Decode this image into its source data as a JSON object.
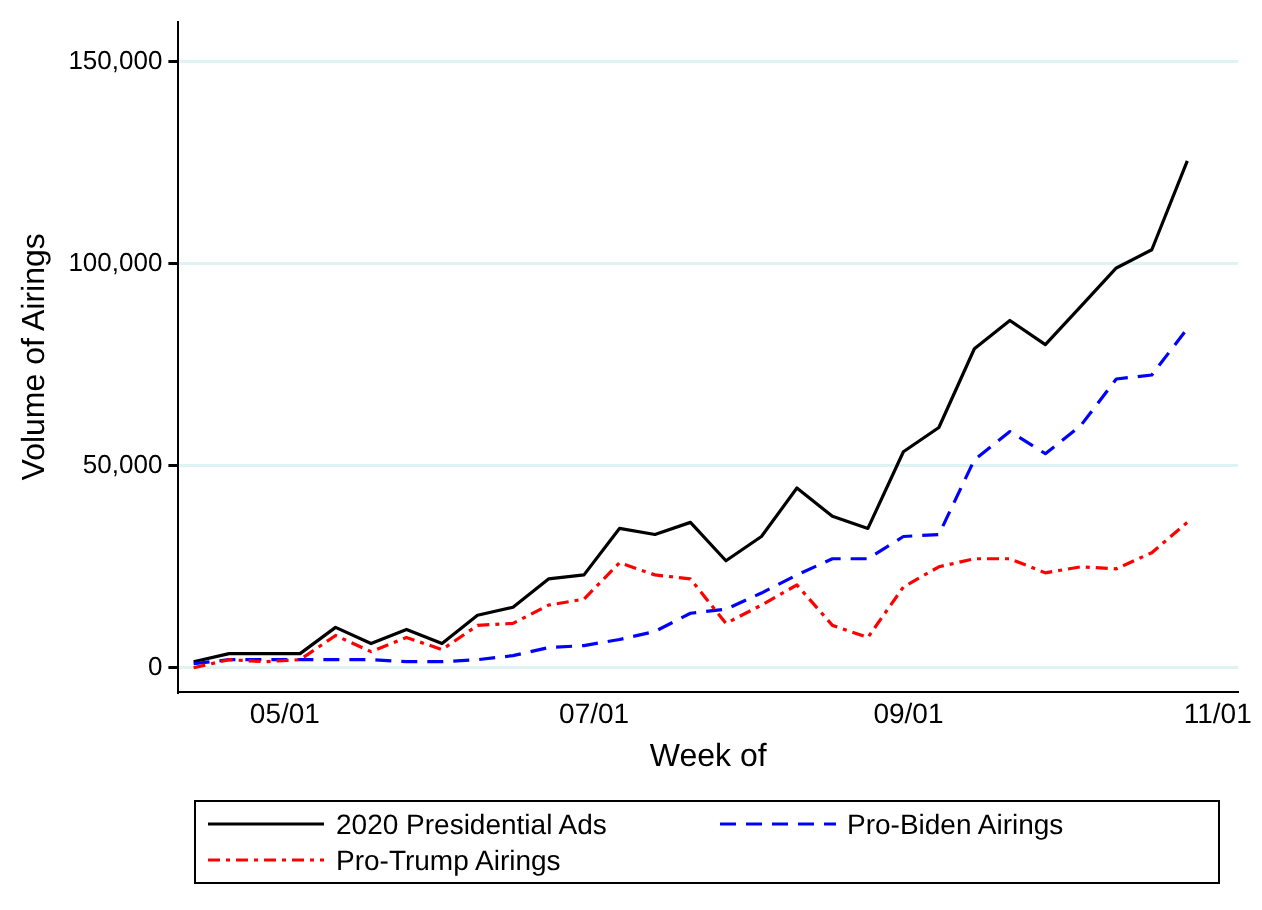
{
  "chart_data": {
    "type": "line",
    "xlabel": "Week of",
    "ylabel": "Volume of Airings",
    "x": [
      "--04-13",
      "--04-20",
      "--04-27",
      "--05-04",
      "--05-11",
      "--05-18",
      "--05-25",
      "--06-01",
      "--06-08",
      "--06-15",
      "--06-22",
      "--06-29",
      "--07-06",
      "--07-13",
      "--07-20",
      "--07-27",
      "--08-03",
      "--08-10",
      "--08-17",
      "--08-24",
      "--08-31",
      "--09-07",
      "--09-14",
      "--09-21",
      "--09-28",
      "--10-05",
      "--10-12",
      "--10-19",
      "--10-26"
    ],
    "series": [
      {
        "name": "2020 Presidential Ads",
        "color": "#000000",
        "line_style": "solid",
        "values": [
          1500,
          3500,
          3500,
          3500,
          10000,
          6000,
          9500,
          6000,
          13000,
          15000,
          22000,
          23000,
          34500,
          33000,
          36000,
          26500,
          32500,
          44500,
          37500,
          34500,
          53500,
          59500,
          79000,
          86000,
          80000,
          89500,
          99000,
          103500,
          125500
        ]
      },
      {
        "name": "Pro-Biden Airings",
        "color": "#0000ff",
        "line_style": "dashed",
        "values": [
          1000,
          2000,
          2000,
          2000,
          2000,
          2000,
          1500,
          1500,
          2000,
          3000,
          5000,
          5500,
          7000,
          9000,
          13500,
          14500,
          18500,
          23000,
          27000,
          27000,
          32500,
          33000,
          51500,
          58500,
          53000,
          60000,
          71500,
          72500,
          84000
        ]
      },
      {
        "name": "Pro-Trump Airings",
        "color": "#ff0000",
        "line_style": "dashdot",
        "values": [
          0,
          2000,
          1500,
          2000,
          8000,
          4000,
          7500,
          4500,
          10500,
          11000,
          15500,
          17000,
          26000,
          23000,
          22000,
          11000,
          15500,
          20500,
          10500,
          7500,
          20000,
          25000,
          27000,
          27000,
          23500,
          25000,
          24500,
          28500,
          36000
        ]
      }
    ],
    "xlim": [
      "--04-10",
      "--11-05"
    ],
    "xticks": [
      {
        "value": "--05-01",
        "label": "05/01"
      },
      {
        "value": "--07-01",
        "label": "07/01"
      },
      {
        "value": "--09-01",
        "label": "09/01"
      },
      {
        "value": "--11-01",
        "label": "11/01"
      }
    ],
    "ylim": [
      -6000,
      160000
    ],
    "yticks": [
      {
        "value": 0,
        "label": "0"
      },
      {
        "value": 50000,
        "label": "50,000"
      },
      {
        "value": 100000,
        "label": "100,000"
      },
      {
        "value": 150000,
        "label": "150,000"
      }
    ],
    "grid": "y",
    "legend": "bottom",
    "marker": "none"
  }
}
